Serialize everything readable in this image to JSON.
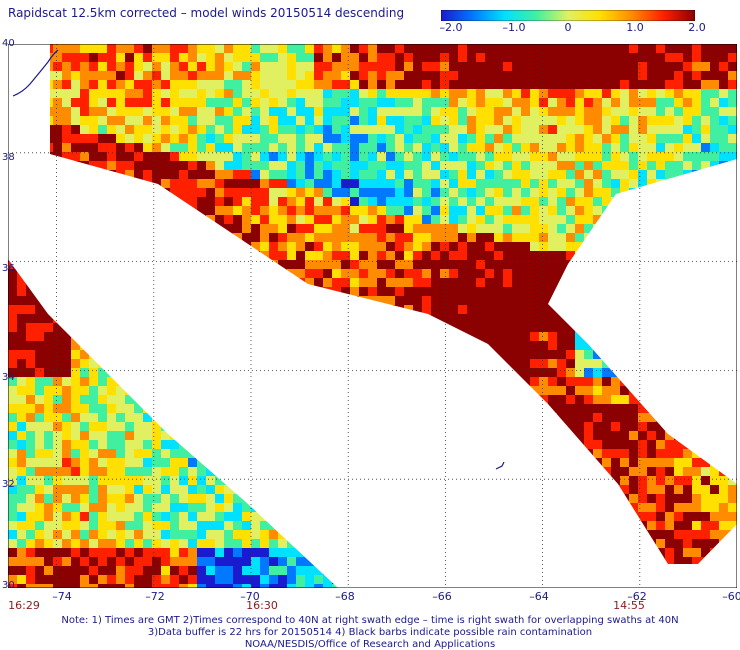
{
  "title": "Rapidscat 12.5km corrected – model winds 20150514 descending",
  "colorbar": {
    "ticks": [
      "–2.0",
      "–1.0",
      "0",
      "1.0",
      "2.0"
    ],
    "colors": [
      "#1a1ad0",
      "#0078ff",
      "#00e0ff",
      "#40f0a0",
      "#e0f060",
      "#ffe000",
      "#ff8c00",
      "#ff2000",
      "#8b0000"
    ]
  },
  "axes": {
    "x_ticks": [
      "–74",
      "–72",
      "–70",
      "–68",
      "–66",
      "–64",
      "–62",
      "–60"
    ],
    "y_ticks": [
      "40",
      "38",
      "36",
      "34",
      "32",
      "30"
    ],
    "x_range": [
      -75.0,
      -60.0
    ],
    "y_range": [
      30.0,
      40.0
    ],
    "grid": true,
    "grid_style": "dotted"
  },
  "times": [
    "16:29",
    "16:30",
    "14:55"
  ],
  "notes": [
    "Note: 1) Times are GMT 2)Times correspond to 40N at right swath edge – time is right swath for overlapping swaths at 40N",
    "3)Data buffer is 22 hrs for 20150514 4) Black barbs indicate possible rain contamination",
    "NOAA/NESDIS/Office of Research and Applications"
  ],
  "chart_data": {
    "type": "heatmap",
    "title": "Rapidscat 12.5km corrected – model winds 20150514 descending",
    "value_range": [
      -2.0,
      2.0
    ],
    "x_range": [
      -75.0,
      -60.0
    ],
    "y_range": [
      30.0,
      40.0
    ],
    "colormap": [
      "#1a1ad0",
      "#0078ff",
      "#00e0ff",
      "#40f0a0",
      "#e0f060",
      "#ffe000",
      "#ff8c00",
      "#ff2000",
      "#8b0000"
    ]
  }
}
